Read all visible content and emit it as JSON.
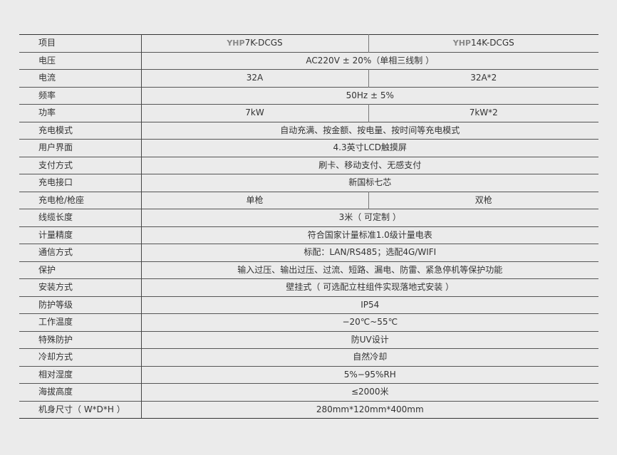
{
  "header": {
    "label": "项目",
    "models": [
      {
        "brand": "YHP",
        "name": "7K-DCGS"
      },
      {
        "brand": "YHP",
        "name": "14K-DCGS"
      }
    ]
  },
  "rows": [
    {
      "label": "电压",
      "value": "AC220V ± 20%（单相三线制 ）"
    },
    {
      "label": "电流",
      "values": [
        "32A",
        "32A*2"
      ]
    },
    {
      "label": "频率",
      "value": "50Hz ± 5%"
    },
    {
      "label": "功率",
      "values": [
        "7kW",
        "7kW*2"
      ]
    },
    {
      "label": "充电模式",
      "value": "自动充满、按金额、按电量、按时间等充电模式"
    },
    {
      "label": "用户界面",
      "value": "4.3英寸LCD触摸屏"
    },
    {
      "label": "支付方式",
      "value": "刷卡、移动支付、无感支付"
    },
    {
      "label": "充电接口",
      "value": "新国标七芯"
    },
    {
      "label": "充电枪/枪座",
      "values": [
        "单枪",
        "双枪"
      ]
    },
    {
      "label": "线缆长度",
      "value": "3米（ 可定制 ）"
    },
    {
      "label": "计量精度",
      "value": "符合国家计量标准1.0级计量电表"
    },
    {
      "label": "通信方式",
      "value": "标配：LAN/RS485；选配4G/WIFI"
    },
    {
      "label": "保护",
      "value": "输入过压、输出过压、过流、短路、漏电、防雷、紧急停机等保护功能"
    },
    {
      "label": "安装方式",
      "value": "壁挂式（ 可选配立柱组件实现落地式安装 ）"
    },
    {
      "label": "防护等级",
      "value": "IP54"
    },
    {
      "label": "工作温度",
      "value": "−20℃~55℃"
    },
    {
      "label": "特殊防护",
      "value": "防UV设计"
    },
    {
      "label": "冷却方式",
      "value": "自然冷却"
    },
    {
      "label": "相对湿度",
      "value": "5%−95%RH"
    },
    {
      "label": "海拔高度",
      "value": "≤2000米"
    },
    {
      "label": "机身尺寸（ W*D*H ）",
      "value": "280mm*120mm*400mm"
    }
  ]
}
